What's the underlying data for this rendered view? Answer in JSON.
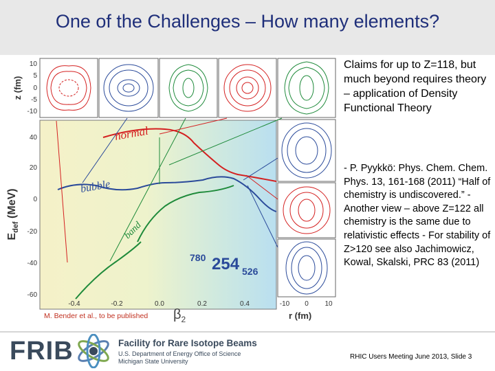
{
  "title": "One of the Challenges – How many elements?",
  "figure": {
    "y_axis_top_label": "z (fm)",
    "y_axis_top_ticks": [
      "10",
      "5",
      "0",
      "-5",
      "-10"
    ],
    "y_axis_main_label_base": "E",
    "y_axis_main_label_sub": "def",
    "y_axis_main_label_unit": " (MeV)",
    "y_axis_main_ticks": [
      "40",
      "20",
      "0",
      "-20",
      "-40",
      "-60"
    ],
    "x_axis_label_base": "β",
    "x_axis_label_sub": "2",
    "x_axis_ticks": [
      "-0.4",
      "-0.2",
      "0.0",
      "0.2",
      "0.4"
    ],
    "r_axis_label": "r (fm)",
    "r_axis_ticks": [
      "-10",
      "0",
      "10"
    ],
    "curve_labels": {
      "normal": "normal",
      "bubble": "bubble",
      "band": "band"
    },
    "isotope": {
      "left": "780",
      "center": "254",
      "right": "526"
    },
    "credit": "M. Bender et al., to be published",
    "colors": {
      "normal": "#d42020",
      "bubble": "#2a4a9a",
      "band": "#1e8a3a"
    }
  },
  "text": {
    "claims": "Claims for up to Z=118, but much beyond requires theory – application of Density Functional Theory",
    "references": "- P. Pyykkö: Phys. Chem. Chem. Phys. 13, 161-168 (2011) “Half of chemistry is undiscovered.” - Another view – above Z=122 all chemistry is the same due to relativistic effects - For stability of Z>120 see also Jachimowicz, Kowal, Skalski, PRC 83 (2011)"
  },
  "footer": {
    "logo_text": "FRIB",
    "name": "Facility for Rare Isotope Beams",
    "sub1": "U.S. Department of Energy Office of Science",
    "sub2": "Michigan State University",
    "slide_ref": "RHIC Users Meeting June 2013, Slide 3"
  }
}
